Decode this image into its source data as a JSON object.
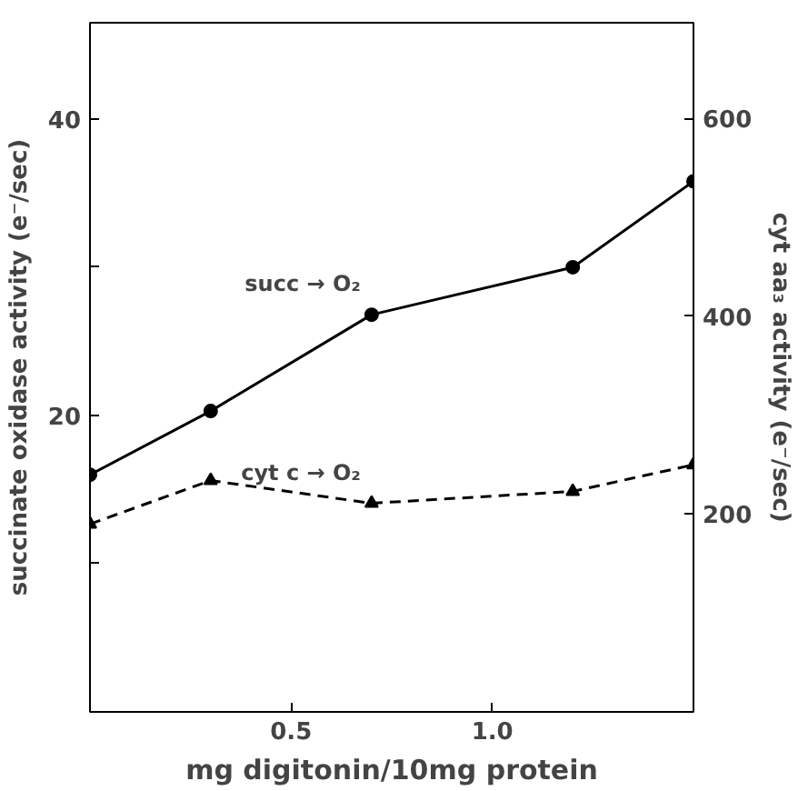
{
  "chart_data": {
    "type": "line",
    "xlabel": "mg digitonin/10mg protein",
    "ylabel": "succinate oxidase activity (e⁻/sec)",
    "y2label": "cyt aa₃ activity (e⁻/sec)",
    "xlim": [
      0,
      1.5
    ],
    "xticks": [
      0.5,
      {
        "value": 1.0,
        "label": "1.0"
      }
    ],
    "ylim": [
      0,
      46.5
    ],
    "yticks": [
      {
        "value": 10,
        "label": null
      },
      20,
      {
        "value": 30,
        "label": null
      },
      40
    ],
    "y2lim": [
      0,
      697
    ],
    "y2ticks": [
      200,
      400,
      600
    ],
    "grid": false,
    "series": [
      {
        "x": [
          0,
          0.3,
          0.7,
          1.2,
          1.5
        ],
        "values": [
          16.0,
          20.3,
          26.8,
          30.0,
          35.8
        ],
        "color": "#000000",
        "marker": "circle",
        "line_style": "solid"
      },
      {
        "x": [
          0,
          0.3,
          0.7,
          1.2,
          1.5
        ],
        "values": [
          190,
          234,
          211,
          223,
          250
        ],
        "color": "#000000",
        "marker": "triangle",
        "line_style": "dashed",
        "axis": "y2"
      }
    ],
    "annotations": [
      "succ → O₂",
      "cyt c → O₂"
    ]
  }
}
